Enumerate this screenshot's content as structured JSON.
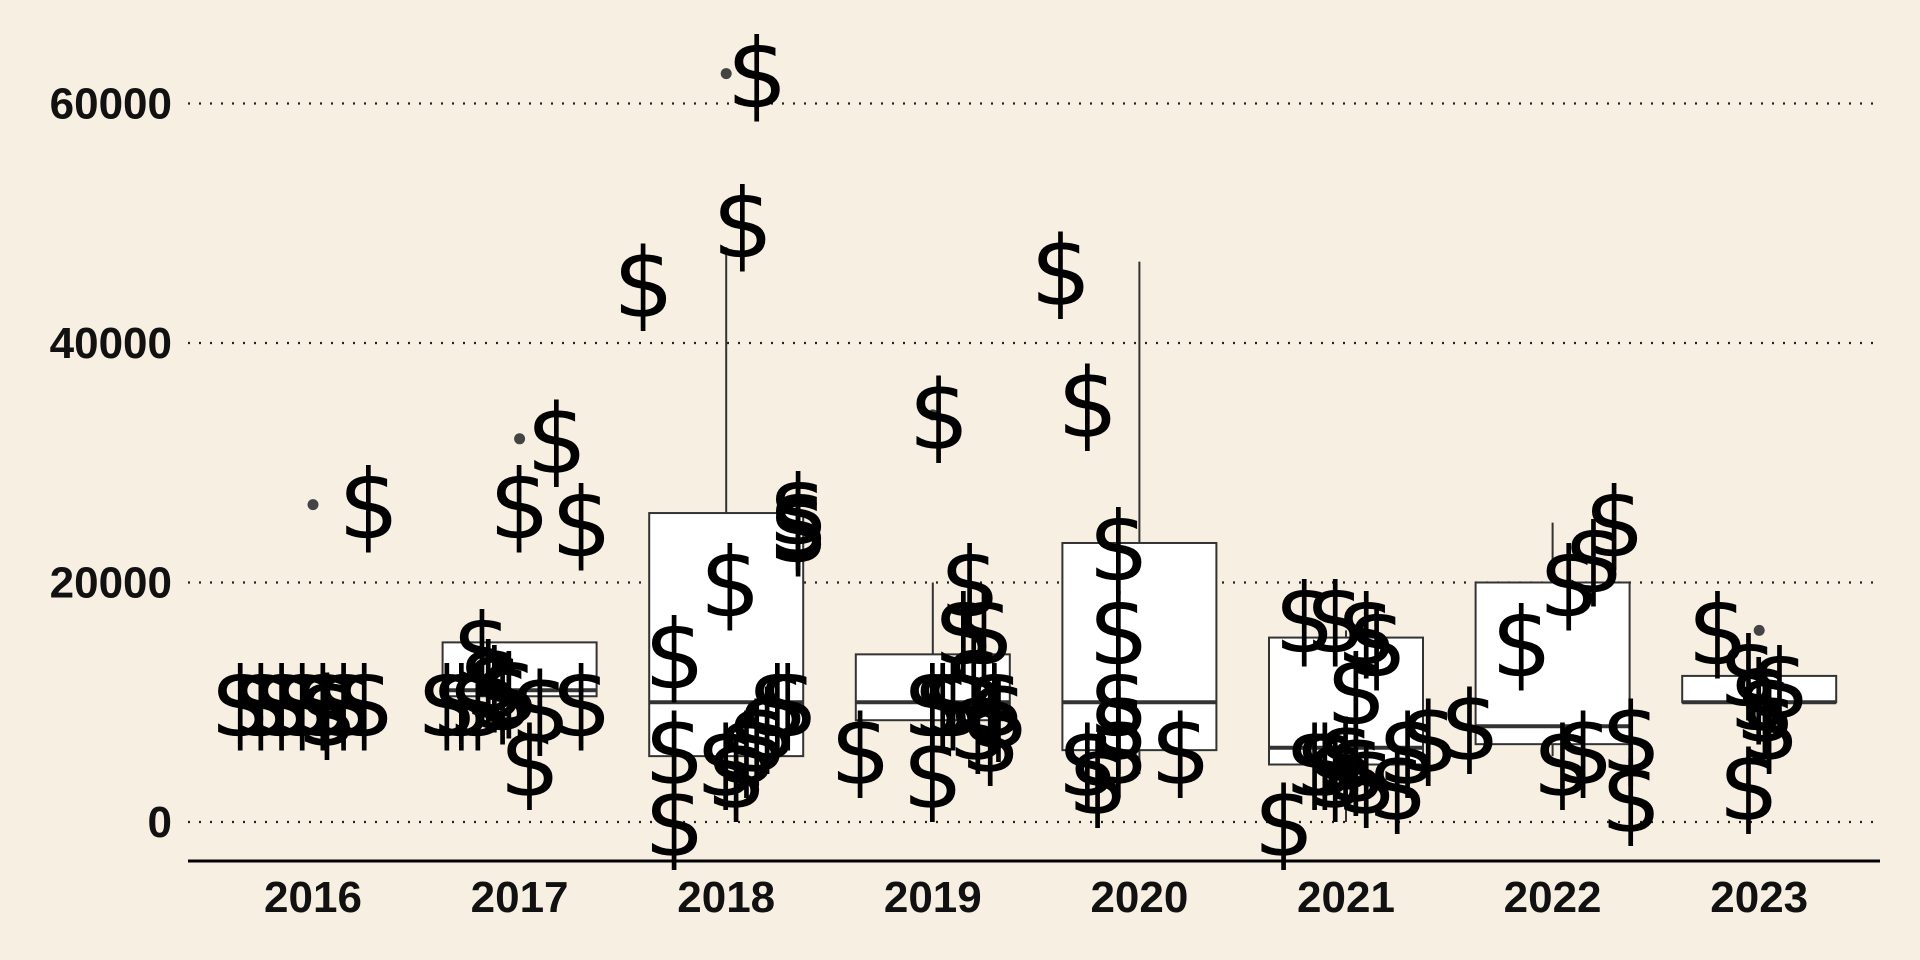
{
  "chart_data": {
    "type": "box",
    "title": "",
    "xlabel": "",
    "ylabel": "",
    "ylim": [
      -3200,
      66000
    ],
    "y_ticks": [
      0,
      20000,
      40000,
      60000
    ],
    "grid": "horizontal dotted",
    "colors": {
      "background": "#f7f0e2",
      "box_fill": "#ffffff",
      "box_line": "#333333",
      "text": "#111111"
    },
    "categories": [
      "2016",
      "2017",
      "2018",
      "2019",
      "2020",
      "2021",
      "2022",
      "2023"
    ],
    "boxes": [
      {
        "year": "2016",
        "q1": null,
        "median": null,
        "q3": null,
        "lower_whisker": null,
        "upper_whisker": null,
        "outliers": [
          26500
        ]
      },
      {
        "year": "2017",
        "q1": 10500,
        "median": 11000,
        "q3": 15000,
        "lower_whisker": 9500,
        "upper_whisker": 15000,
        "outliers": [
          32000
        ]
      },
      {
        "year": "2018",
        "q1": 5500,
        "median": 10000,
        "q3": 25800,
        "lower_whisker": 3000,
        "upper_whisker": 48000,
        "outliers": [
          62500
        ]
      },
      {
        "year": "2019",
        "q1": 8500,
        "median": 10000,
        "q3": 14000,
        "lower_whisker": 7000,
        "upper_whisker": 20000,
        "outliers": [
          34000
        ]
      },
      {
        "year": "2020",
        "q1": 6000,
        "median": 10000,
        "q3": 23300,
        "lower_whisker": 4000,
        "upper_whisker": 46800,
        "outliers": []
      },
      {
        "year": "2021",
        "q1": 4800,
        "median": 6200,
        "q3": 15400,
        "lower_whisker": 0,
        "upper_whisker": 16000,
        "outliers": []
      },
      {
        "year": "2022",
        "q1": 6500,
        "median": 8000,
        "q3": 20000,
        "lower_whisker": 5500,
        "upper_whisker": 25000,
        "outliers": []
      },
      {
        "year": "2023",
        "q1": 10000,
        "median": 10000,
        "q3": 12200,
        "lower_whisker": 10000,
        "upper_whisker": 12500,
        "outliers": [
          16000
        ]
      }
    ],
    "points": [
      {
        "year": "2016",
        "x_offset": -0.35,
        "value": 10000
      },
      {
        "year": "2016",
        "x_offset": -0.25,
        "value": 10000
      },
      {
        "year": "2016",
        "x_offset": -0.15,
        "value": 10000
      },
      {
        "year": "2016",
        "x_offset": -0.05,
        "value": 10000
      },
      {
        "year": "2016",
        "x_offset": 0.05,
        "value": 10000
      },
      {
        "year": "2016",
        "x_offset": 0.07,
        "value": 9200
      },
      {
        "year": "2016",
        "x_offset": 0.15,
        "value": 10000
      },
      {
        "year": "2016",
        "x_offset": 0.25,
        "value": 10000
      },
      {
        "year": "2016",
        "x_offset": 0.27,
        "value": 26500
      },
      {
        "year": "2017",
        "x_offset": -0.35,
        "value": 10000
      },
      {
        "year": "2017",
        "x_offset": -0.28,
        "value": 10000
      },
      {
        "year": "2017",
        "x_offset": -0.2,
        "value": 10000
      },
      {
        "year": "2017",
        "x_offset": -0.18,
        "value": 14500
      },
      {
        "year": "2017",
        "x_offset": -0.15,
        "value": 12000
      },
      {
        "year": "2017",
        "x_offset": -0.12,
        "value": 11500
      },
      {
        "year": "2017",
        "x_offset": -0.08,
        "value": 10500
      },
      {
        "year": "2017",
        "x_offset": -0.05,
        "value": 11000
      },
      {
        "year": "2017",
        "x_offset": 0.0,
        "value": 26500
      },
      {
        "year": "2017",
        "x_offset": 0.05,
        "value": 5000
      },
      {
        "year": "2017",
        "x_offset": 0.1,
        "value": 9500
      },
      {
        "year": "2017",
        "x_offset": 0.18,
        "value": 32000
      },
      {
        "year": "2017",
        "x_offset": 0.3,
        "value": 25000
      },
      {
        "year": "2017",
        "x_offset": 0.3,
        "value": 10000
      },
      {
        "year": "2018",
        "x_offset": -0.4,
        "value": 45000
      },
      {
        "year": "2018",
        "x_offset": -0.25,
        "value": 14000
      },
      {
        "year": "2018",
        "x_offset": -0.25,
        "value": 6000
      },
      {
        "year": "2018",
        "x_offset": -0.25,
        "value": 0
      },
      {
        "year": "2018",
        "x_offset": 0.02,
        "value": 20000
      },
      {
        "year": "2018",
        "x_offset": 0.08,
        "value": 50000
      },
      {
        "year": "2018",
        "x_offset": 0.15,
        "value": 62500
      },
      {
        "year": "2018",
        "x_offset": 0.0,
        "value": 5000
      },
      {
        "year": "2018",
        "x_offset": 0.05,
        "value": 4000
      },
      {
        "year": "2018",
        "x_offset": 0.1,
        "value": 6000
      },
      {
        "year": "2018",
        "x_offset": 0.15,
        "value": 7000
      },
      {
        "year": "2018",
        "x_offset": 0.2,
        "value": 8000
      },
      {
        "year": "2018",
        "x_offset": 0.25,
        "value": 10000
      },
      {
        "year": "2018",
        "x_offset": 0.3,
        "value": 10000
      },
      {
        "year": "2018",
        "x_offset": 0.35,
        "value": 26000
      },
      {
        "year": "2018",
        "x_offset": 0.35,
        "value": 25000
      },
      {
        "year": "2018",
        "x_offset": 0.35,
        "value": 24500
      },
      {
        "year": "2019",
        "x_offset": -0.35,
        "value": 6000
      },
      {
        "year": "2019",
        "x_offset": 0.0,
        "value": 4000
      },
      {
        "year": "2019",
        "x_offset": 0.03,
        "value": 34000
      },
      {
        "year": "2019",
        "x_offset": 0.0,
        "value": 10000
      },
      {
        "year": "2019",
        "x_offset": 0.05,
        "value": 10000
      },
      {
        "year": "2019",
        "x_offset": 0.1,
        "value": 10000
      },
      {
        "year": "2019",
        "x_offset": 0.15,
        "value": 16000
      },
      {
        "year": "2019",
        "x_offset": 0.18,
        "value": 20000
      },
      {
        "year": "2019",
        "x_offset": 0.2,
        "value": 12000
      },
      {
        "year": "2019",
        "x_offset": 0.22,
        "value": 8000
      },
      {
        "year": "2019",
        "x_offset": 0.25,
        "value": 16000
      },
      {
        "year": "2019",
        "x_offset": 0.28,
        "value": 7000
      },
      {
        "year": "2019",
        "x_offset": 0.3,
        "value": 10000
      },
      {
        "year": "2019",
        "x_offset": 0.32,
        "value": 9000
      },
      {
        "year": "2020",
        "x_offset": -0.38,
        "value": 46000
      },
      {
        "year": "2020",
        "x_offset": -0.25,
        "value": 35000
      },
      {
        "year": "2020",
        "x_offset": -0.25,
        "value": 5000
      },
      {
        "year": "2020",
        "x_offset": -0.2,
        "value": 3500
      },
      {
        "year": "2020",
        "x_offset": -0.1,
        "value": 10000
      },
      {
        "year": "2020",
        "x_offset": -0.1,
        "value": 8000
      },
      {
        "year": "2020",
        "x_offset": -0.1,
        "value": 6000
      },
      {
        "year": "2020",
        "x_offset": -0.1,
        "value": 16000
      },
      {
        "year": "2020",
        "x_offset": -0.1,
        "value": 23000
      },
      {
        "year": "2020",
        "x_offset": 0.2,
        "value": 6000
      },
      {
        "year": "2021",
        "x_offset": -0.3,
        "value": 0
      },
      {
        "year": "2021",
        "x_offset": -0.2,
        "value": 17000
      },
      {
        "year": "2021",
        "x_offset": -0.05,
        "value": 17000
      },
      {
        "year": "2021",
        "x_offset": 0.05,
        "value": 11000
      },
      {
        "year": "2021",
        "x_offset": 0.1,
        "value": 16000
      },
      {
        "year": "2021",
        "x_offset": 0.15,
        "value": 15000
      },
      {
        "year": "2021",
        "x_offset": -0.15,
        "value": 5000
      },
      {
        "year": "2021",
        "x_offset": -0.1,
        "value": 5000
      },
      {
        "year": "2021",
        "x_offset": -0.05,
        "value": 4000
      },
      {
        "year": "2021",
        "x_offset": 0.0,
        "value": 5500
      },
      {
        "year": "2021",
        "x_offset": 0.05,
        "value": 4500
      },
      {
        "year": "2021",
        "x_offset": 0.1,
        "value": 3500
      },
      {
        "year": "2021",
        "x_offset": 0.25,
        "value": 3000
      },
      {
        "year": "2021",
        "x_offset": 0.3,
        "value": 6000
      },
      {
        "year": "2021",
        "x_offset": 0.4,
        "value": 7000
      },
      {
        "year": "2022",
        "x_offset": -0.4,
        "value": 8000
      },
      {
        "year": "2022",
        "x_offset": -0.15,
        "value": 15000
      },
      {
        "year": "2022",
        "x_offset": 0.05,
        "value": 5000
      },
      {
        "year": "2022",
        "x_offset": 0.08,
        "value": 20000
      },
      {
        "year": "2022",
        "x_offset": 0.15,
        "value": 6000
      },
      {
        "year": "2022",
        "x_offset": 0.2,
        "value": 22000
      },
      {
        "year": "2022",
        "x_offset": 0.3,
        "value": 25000
      },
      {
        "year": "2022",
        "x_offset": 0.38,
        "value": 7000
      },
      {
        "year": "2022",
        "x_offset": 0.38,
        "value": 2000
      },
      {
        "year": "2023",
        "x_offset": -0.2,
        "value": 16000
      },
      {
        "year": "2023",
        "x_offset": -0.05,
        "value": 12500
      },
      {
        "year": "2023",
        "x_offset": 0.0,
        "value": 10500
      },
      {
        "year": "2023",
        "x_offset": 0.03,
        "value": 9500
      },
      {
        "year": "2023",
        "x_offset": 0.05,
        "value": 8000
      },
      {
        "year": "2023",
        "x_offset": -0.05,
        "value": 3000
      },
      {
        "year": "2023",
        "x_offset": 0.1,
        "value": 11500
      }
    ]
  }
}
